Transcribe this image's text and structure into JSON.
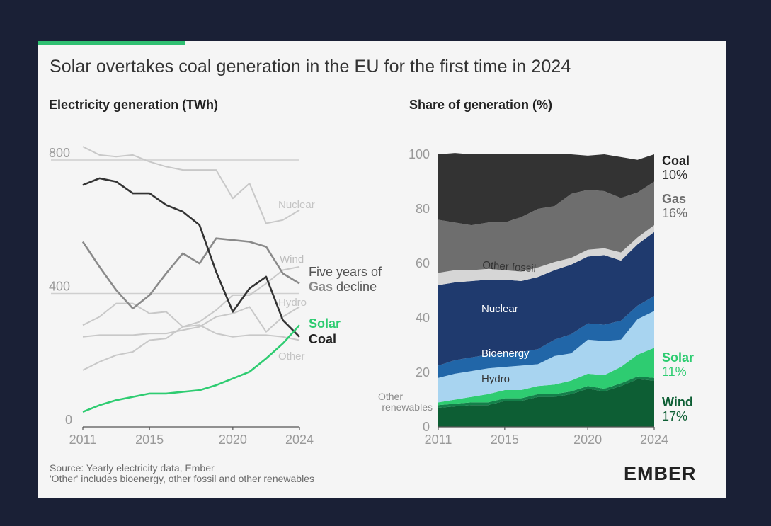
{
  "title": "Solar overtakes coal generation in the EU for the first time in 2024",
  "source_line1": "Source: Yearly electricity data, Ember",
  "source_line2": "'Other' includes bioenergy, other fossil and other renewables",
  "logo": "EMBER",
  "colors": {
    "background": "#1a2036",
    "card": "#f5f5f5",
    "accent": "#2fbf71",
    "solar": "#2ecc71",
    "coal_line": "#333333",
    "context_line": "#c8c8c8",
    "gas_highlight": "#8a8a8a",
    "coal_area": "#333333",
    "gas_area": "#6e6e6e",
    "other_fossil_area": "#d6d6d6",
    "nuclear_area": "#1f3a6e",
    "bioenergy_area": "#2166a8",
    "hydro_area": "#a8d4f0",
    "solar_area": "#2ecc71",
    "other_renewables_area": "#14804a",
    "wind_area": "#0d5e34"
  },
  "chart_data": [
    {
      "type": "line",
      "title": "Electricity generation (TWh)",
      "x": [
        2011,
        2012,
        2013,
        2014,
        2015,
        2016,
        2017,
        2018,
        2019,
        2020,
        2021,
        2022,
        2023,
        2024
      ],
      "xticks": [
        "2011",
        "2015",
        "2020",
        "2024"
      ],
      "yticks": [
        "0",
        "400",
        "800"
      ],
      "ylim": [
        0,
        850
      ],
      "gridlines": [
        400,
        800
      ],
      "series": [
        {
          "name": "Nuclear",
          "values": [
            840,
            815,
            810,
            815,
            795,
            780,
            770,
            770,
            770,
            685,
            730,
            610,
            620,
            650
          ],
          "style": "context"
        },
        {
          "name": "Wind",
          "values": [
            305,
            330,
            370,
            370,
            340,
            345,
            300,
            315,
            350,
            395,
            395,
            430,
            470,
            480
          ],
          "style": "context"
        },
        {
          "name": "Hydro",
          "values": [
            270,
            275,
            275,
            275,
            280,
            280,
            290,
            300,
            330,
            340,
            360,
            285,
            330,
            360
          ],
          "style": "context"
        },
        {
          "name": "Other",
          "values": [
            170,
            195,
            215,
            225,
            260,
            265,
            300,
            305,
            280,
            270,
            275,
            275,
            270,
            260
          ],
          "style": "context"
        },
        {
          "name": "Gas",
          "values": [
            555,
            480,
            410,
            355,
            395,
            460,
            520,
            490,
            565,
            560,
            555,
            540,
            460,
            430
          ],
          "style": "gas"
        },
        {
          "name": "Coal",
          "values": [
            725,
            745,
            735,
            700,
            700,
            665,
            645,
            605,
            465,
            345,
            415,
            450,
            320,
            270
          ],
          "style": "coal"
        },
        {
          "name": "Solar",
          "values": [
            45,
            65,
            80,
            90,
            100,
            100,
            105,
            110,
            125,
            145,
            165,
            205,
            250,
            305
          ],
          "style": "solar"
        }
      ],
      "annotations": {
        "nuclear": "Nuclear",
        "wind": "Wind",
        "hydro": "Hydro",
        "other": "Other",
        "gas_callout_line1": "Five years of",
        "gas_callout_word": "Gas",
        "gas_callout_rest": " decline",
        "solar": "Solar",
        "coal": "Coal"
      }
    },
    {
      "type": "area",
      "stacked": true,
      "title": "Share of generation (%)",
      "x": [
        2011,
        2012,
        2013,
        2014,
        2015,
        2016,
        2017,
        2018,
        2019,
        2020,
        2021,
        2022,
        2023,
        2024
      ],
      "xticks": [
        "2011",
        "2015",
        "2020",
        "2024"
      ],
      "yticks": [
        "0",
        "20",
        "40",
        "60",
        "80",
        "100"
      ],
      "ylim": [
        0,
        100
      ],
      "series": [
        {
          "name": "Wind",
          "key": "wind",
          "values": [
            7,
            7.5,
            8,
            8,
            9.5,
            9.5,
            11,
            11,
            12,
            14,
            13,
            15,
            17.5,
            17
          ]
        },
        {
          "name": "Other renewables",
          "key": "other_renewables",
          "values": [
            1,
            1,
            1,
            1,
            1,
            1,
            1,
            1,
            1,
            1,
            1,
            1,
            1,
            1
          ]
        },
        {
          "name": "Solar",
          "key": "solar",
          "values": [
            1,
            1.5,
            2,
            3,
            3,
            3,
            3,
            3.5,
            4,
            4.5,
            5,
            6,
            8,
            11
          ]
        },
        {
          "name": "Hydro",
          "key": "hydro",
          "values": [
            9,
            9.5,
            9.5,
            9.5,
            8.5,
            9,
            8,
            10.5,
            10,
            12.5,
            12.5,
            10,
            13,
            13.5
          ]
        },
        {
          "name": "Bioenergy",
          "key": "bioenergy",
          "values": [
            4.5,
            5,
            5,
            5,
            5,
            5,
            5.5,
            6,
            7,
            6,
            6,
            7,
            5,
            5.5
          ]
        },
        {
          "name": "Nuclear",
          "key": "nuclear",
          "values": [
            29.5,
            28.5,
            28,
            27.5,
            27,
            26,
            26.5,
            25.5,
            25.5,
            24.5,
            25.5,
            22,
            22.5,
            23.5
          ]
        },
        {
          "name": "Other fossil",
          "key": "other_fossil",
          "values": [
            4.5,
            4.5,
            4,
            4,
            3.5,
            3.5,
            3.5,
            3,
            2.5,
            2.5,
            2.5,
            3,
            2.5,
            2.5
          ]
        },
        {
          "name": "Gas",
          "key": "gas",
          "values": [
            19.5,
            17.5,
            16.5,
            17,
            17.5,
            20,
            21.5,
            20.5,
            23.5,
            22,
            21,
            20,
            16.5,
            16
          ]
        },
        {
          "name": "Coal",
          "key": "coal",
          "values": [
            24,
            25.5,
            26,
            25,
            25,
            23,
            20,
            19,
            14.5,
            12.5,
            13.5,
            15,
            12,
            10
          ]
        }
      ],
      "inline_labels": {
        "other_fossil": "Other fossil",
        "nuclear": "Nuclear",
        "bioenergy": "Bioenergy",
        "hydro": "Hydro",
        "other_renewables_line1": "Other",
        "other_renewables_line2": "renewables"
      },
      "end_labels": [
        {
          "key": "coal",
          "name": "Coal",
          "value": "10%"
        },
        {
          "key": "gas",
          "name": "Gas",
          "value": "16%"
        },
        {
          "key": "solar",
          "name": "Solar",
          "value": "11%"
        },
        {
          "key": "wind",
          "name": "Wind",
          "value": "17%"
        }
      ]
    }
  ]
}
